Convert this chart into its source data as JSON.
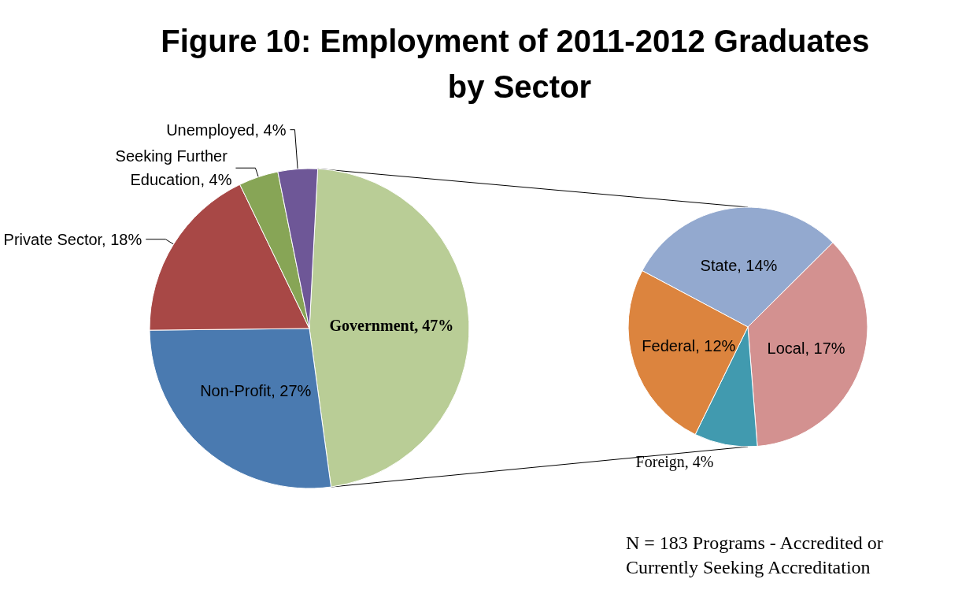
{
  "chart_data": [
    {
      "type": "pie",
      "title": "Figure 10: Employment of 2011-2012 Graduates by Sector",
      "categories": [
        "Government",
        "Non-Profit",
        "Private Sector",
        "Seeking Further Education",
        "Unemployed"
      ],
      "values": [
        47,
        27,
        18,
        4,
        4
      ],
      "value_labels": [
        "47%",
        "27%",
        "18%",
        "4%",
        "4%"
      ],
      "colors": [
        "#b9cd96",
        "#4a7ab0",
        "#a84846",
        "#87a556",
        "#6e5797"
      ],
      "annotations": [
        "N = 183 Programs - Accredited or Currently Seeking Accreditation"
      ]
    },
    {
      "type": "pie",
      "categories": [
        "State",
        "Local",
        "Foreign",
        "Federal"
      ],
      "values": [
        14,
        17,
        4,
        12
      ],
      "value_labels": [
        "14%",
        "17%",
        "4%",
        "12%"
      ],
      "colors": [
        "#93a9cf",
        "#d39190",
        "#419aaf",
        "#dc843e"
      ]
    }
  ]
}
